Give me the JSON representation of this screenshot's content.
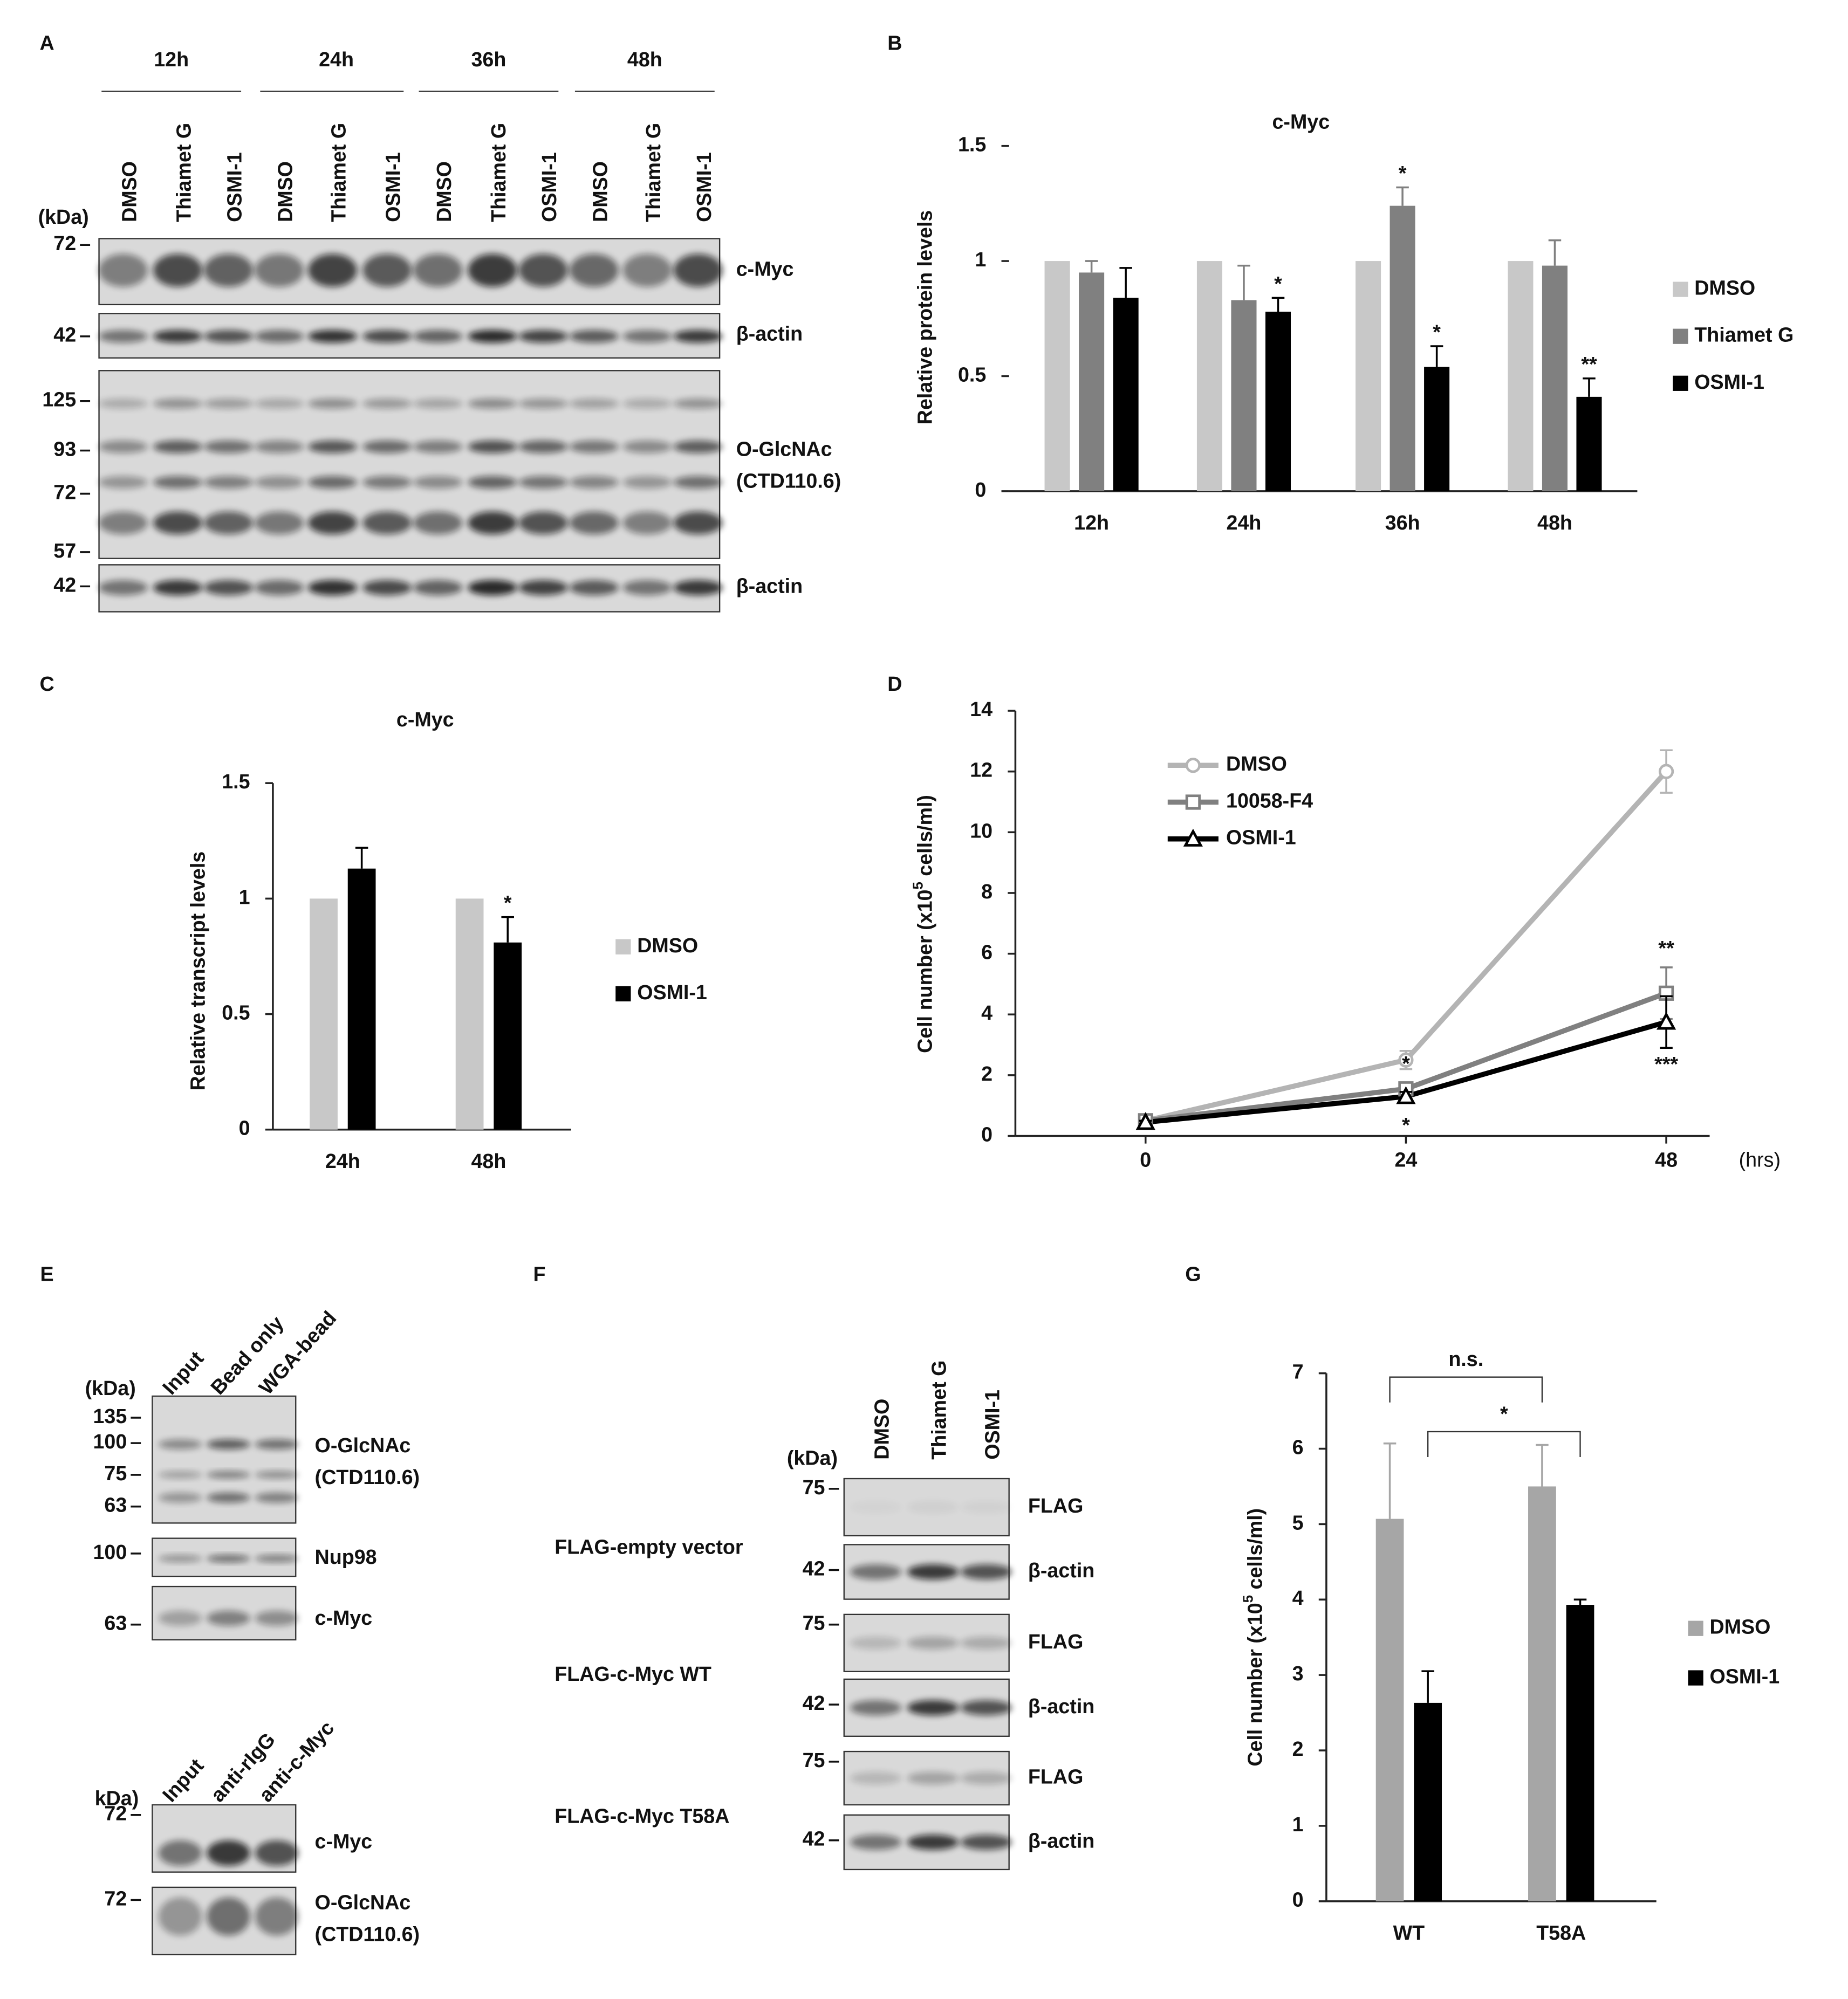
{
  "letters": [
    "A",
    "B",
    "C",
    "D",
    "E",
    "F",
    "G"
  ],
  "panel_a": {
    "times": [
      "12h",
      "24h",
      "36h",
      "48h"
    ],
    "lanes": [
      "DMSO",
      "Thiamet G",
      "OSMI-1",
      "DMSO",
      "Thiamet G",
      "OSMI-1",
      "DMSO",
      "Thiamet G",
      "OSMI-1",
      "DMSO",
      "Thiamet G",
      "OSMI-1"
    ],
    "unit": "(kDa)",
    "blots": [
      {
        "label": [
          "c-Myc"
        ],
        "markers": [
          72
        ]
      },
      {
        "label": [
          "β-actin"
        ],
        "markers": [
          42
        ]
      },
      {
        "label": [
          "O-GlcNAc",
          "(CTD110.6)"
        ],
        "markers": [
          125,
          93,
          72,
          57
        ]
      },
      {
        "label": [
          "β-actin"
        ],
        "markers": [
          42
        ]
      }
    ]
  },
  "panel_e": {
    "top": {
      "lanes": [
        "Input",
        "Bead only",
        "WGA-bead"
      ],
      "unit": "(kDa)",
      "blots": [
        {
          "label": [
            "O-GlcNAc",
            "(CTD110.6)"
          ],
          "markers": [
            135,
            100,
            75,
            63
          ]
        },
        {
          "label": [
            "Nup98"
          ],
          "markers": [
            100
          ]
        },
        {
          "label": [
            "c-Myc"
          ],
          "markers": [
            63
          ]
        }
      ]
    },
    "bottom": {
      "lanes": [
        "Input",
        "anti-rIgG",
        "anti-c-Myc"
      ],
      "unit": "kDa)",
      "blots": [
        {
          "label": [
            "c-Myc"
          ],
          "markers": [
            72
          ]
        },
        {
          "label": [
            "O-GlcNAc",
            "(CTD110.6)"
          ],
          "markers": [
            72
          ]
        }
      ]
    }
  },
  "panel_f": {
    "lanes": [
      "DMSO",
      "Thiamet G",
      "OSMI-1"
    ],
    "unit": "(kDa)",
    "groups": [
      {
        "name": "FLAG-empty vector",
        "blots": [
          {
            "label": [
              "FLAG"
            ],
            "markers": [
              75
            ]
          },
          {
            "label": [
              "β-actin"
            ],
            "markers": [
              42
            ]
          }
        ]
      },
      {
        "name": "FLAG-c-Myc WT",
        "blots": [
          {
            "label": [
              "FLAG"
            ],
            "markers": [
              75
            ]
          },
          {
            "label": [
              "β-actin"
            ],
            "markers": [
              42
            ]
          }
        ]
      },
      {
        "name": "FLAG-c-Myc T58A",
        "blots": [
          {
            "label": [
              "FLAG"
            ],
            "markers": [
              75
            ]
          },
          {
            "label": [
              "β-actin"
            ],
            "markers": [
              42
            ]
          }
        ]
      }
    ]
  },
  "chart_data": [
    {
      "type": "bar",
      "title": "c-Myc",
      "ylabel": "Relative protein levels",
      "categories": [
        "12h",
        "24h",
        "36h",
        "48h"
      ],
      "series": [
        {
          "name": "DMSO",
          "color": "#c8c8c8",
          "values": [
            1,
            1,
            1,
            1
          ]
        },
        {
          "name": "Thiamet G",
          "color": "#808080",
          "values": [
            0.95,
            0.83,
            1.24,
            0.98
          ],
          "errors": [
            0.05,
            0.15,
            0.08,
            0.11
          ],
          "significance": [
            null,
            null,
            "*",
            null
          ]
        },
        {
          "name": "OSMI-1",
          "color": "#000000",
          "values": [
            0.84,
            0.78,
            0.54,
            0.41
          ],
          "errors": [
            0.13,
            0.06,
            0.09,
            0.08
          ],
          "significance": [
            null,
            "*",
            "*",
            "**"
          ]
        }
      ],
      "ylim": [
        0,
        1.5
      ],
      "yticks": [
        0,
        0.5,
        1,
        1.5
      ]
    },
    {
      "type": "bar",
      "title": "c-Myc",
      "ylabel": "Relative transcript levels",
      "categories": [
        "24h",
        "48h"
      ],
      "series": [
        {
          "name": "DMSO",
          "color": "#c8c8c8",
          "values": [
            1,
            1
          ]
        },
        {
          "name": "OSMI-1",
          "color": "#000000",
          "values": [
            1.13,
            0.81
          ],
          "errors": [
            0.09,
            0.11
          ],
          "significance": [
            null,
            "*"
          ]
        }
      ],
      "ylim": [
        0,
        1.5
      ],
      "yticks": [
        0,
        0.5,
        1,
        1.5
      ]
    },
    {
      "type": "line",
      "ylabel": [
        "Cell number (x10",
        "5",
        " cells/ml)"
      ],
      "xunit": "(hrs)",
      "x": [
        0,
        24,
        48
      ],
      "series": [
        {
          "name": "DMSO",
          "color": "#b4b4b4",
          "marker": "circle",
          "values": [
            0.5,
            2.5,
            12
          ],
          "errors": [
            0.1,
            0.3,
            0.7
          ]
        },
        {
          "name": "10058-F4",
          "color": "#808080",
          "marker": "square",
          "values": [
            0.5,
            1.55,
            4.7
          ],
          "errors": [
            0.05,
            0.2,
            0.85
          ],
          "significance": [
            null,
            "*",
            "**"
          ]
        },
        {
          "name": "OSMI-1",
          "color": "#000000",
          "marker": "triangle",
          "values": [
            0.45,
            1.3,
            3.75
          ],
          "errors": [
            0.05,
            0.15,
            0.85
          ],
          "significance": [
            null,
            "*",
            "***"
          ]
        }
      ],
      "xlim": [
        -12,
        52
      ],
      "xticks": [
        0,
        24,
        48
      ],
      "ylim": [
        0,
        14
      ],
      "yticks": [
        0,
        2,
        4,
        6,
        8,
        10,
        12,
        14
      ]
    },
    {
      "type": "bar",
      "ylabel": [
        "Cell number (x10",
        "5",
        " cells/ml)"
      ],
      "categories": [
        "WT",
        "T58A"
      ],
      "series": [
        {
          "name": "DMSO",
          "color": "#a6a6a6",
          "values": [
            5.07,
            5.5
          ],
          "errors": [
            1.0,
            0.55
          ]
        },
        {
          "name": "OSMI-1",
          "color": "#000000",
          "values": [
            2.63,
            3.93
          ],
          "errors": [
            0.42,
            0.07
          ]
        }
      ],
      "comparisons": [
        "n.s.",
        "*"
      ],
      "ylim": [
        0,
        7
      ],
      "yticks": [
        0,
        1,
        2,
        3,
        4,
        5,
        6,
        7
      ]
    }
  ]
}
